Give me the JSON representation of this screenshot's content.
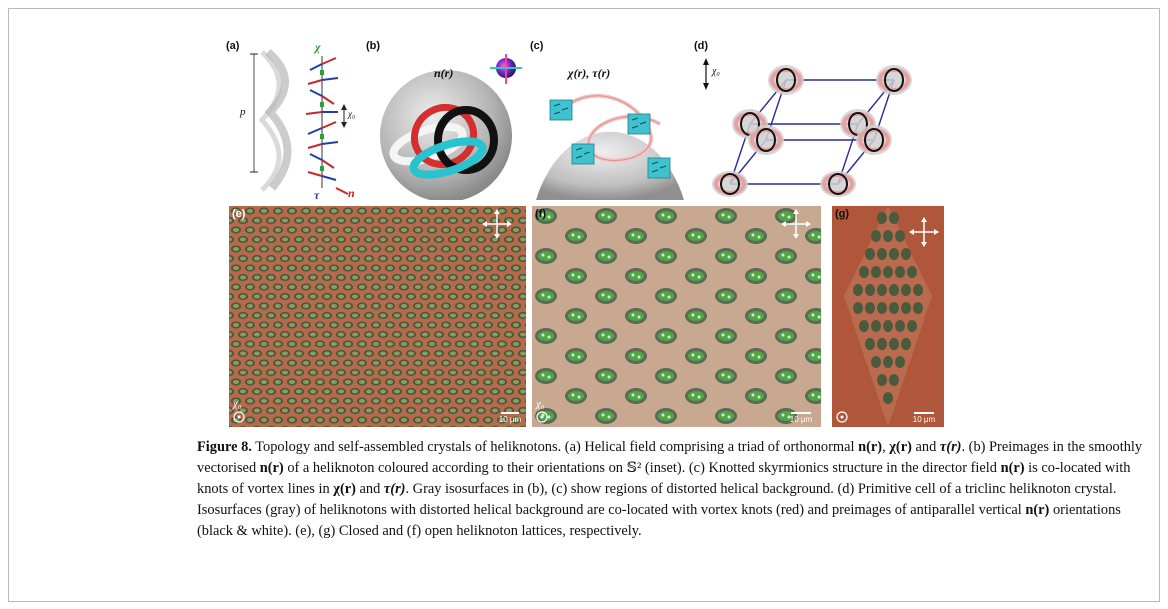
{
  "panels": {
    "a": {
      "label": "(a)",
      "chi": "χ",
      "p": "p",
      "chi0": "χ₀",
      "tau": "τ",
      "n": "n"
    },
    "b": {
      "label": "(b)",
      "field": "n(r)"
    },
    "c": {
      "label": "(c)",
      "field": "χ(r), τ(r)"
    },
    "d": {
      "label": "(d)",
      "chi0": "χ₀"
    },
    "e": {
      "label": "(e)",
      "chi0": "χ₀",
      "scale": "10 μm"
    },
    "f": {
      "label": "(f)",
      "chi0": "χ₀",
      "scale": "10 μm"
    },
    "g": {
      "label": "(g)",
      "scale": "10 μm"
    }
  },
  "caption": {
    "figure_label": "Figure 8.",
    "s1": " Topology and self-assembled crystals of heliknotons. (a) Helical field comprising a triad of orthonormal ",
    "s2": " and ",
    "s3": ". (b) Preimages in the smoothly vectorised ",
    "s4": " of a heliknoton coloured according to their orientations on ",
    "s5": " (inset). (c) Knotted skyrmionics structure in the director field ",
    "s6": " is co-located with knots of vortex lines in ",
    "s7": " and ",
    "s8": ". Gray isosurfaces in (b), (c) show regions of distorted helical background. (d) Primitive cell of a triclinc heliknoton crystal. Isosurfaces (gray) of heliknotons with distorted helical background are co-located with vortex knots (red) and preimages of antiparallel vertical ",
    "s9": " orientations (black & white). (e), (g) Closed and (f) open heliknoton lattices, respectively.",
    "n_r": "n(r)",
    "chi_r": "χ(r)",
    "tau_r": "τ(r)",
    "sphere": "𝕊²"
  }
}
